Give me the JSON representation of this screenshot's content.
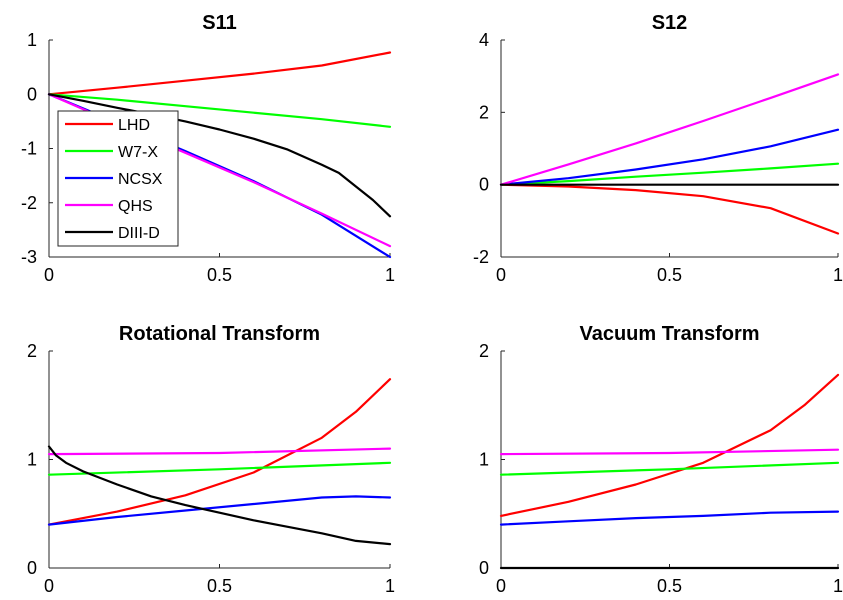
{
  "chart_data": [
    {
      "type": "line",
      "title": "S11",
      "xlabel": "",
      "ylabel": "",
      "xlim": [
        0,
        1
      ],
      "ylim": [
        -3,
        1
      ],
      "xticks": [
        "0",
        "0.5",
        "1"
      ],
      "yticks": [
        "1",
        "0",
        "-1",
        "-2",
        "-3"
      ],
      "grid": false,
      "legend": {
        "placement": "lower-left",
        "entries": [
          "LHD",
          "W7-X",
          "NCSX",
          "QHS",
          "DIII-D"
        ]
      },
      "series": [
        {
          "name": "LHD",
          "color": "#ff0000",
          "x": [
            0,
            0.2,
            0.4,
            0.6,
            0.8,
            1.0
          ],
          "y": [
            0,
            0.12,
            0.25,
            0.38,
            0.53,
            0.77
          ]
        },
        {
          "name": "W7-X",
          "color": "#00ff00",
          "x": [
            0,
            0.2,
            0.4,
            0.6,
            0.8,
            1.0
          ],
          "y": [
            0,
            -0.1,
            -0.22,
            -0.34,
            -0.46,
            -0.6
          ]
        },
        {
          "name": "NCSX",
          "color": "#0000ff",
          "x": [
            0,
            0.2,
            0.4,
            0.6,
            0.8,
            1.0
          ],
          "y": [
            0,
            -0.52,
            -1.05,
            -1.6,
            -2.22,
            -3.0
          ]
        },
        {
          "name": "QHS",
          "color": "#ff00ff",
          "x": [
            0,
            0.2,
            0.4,
            0.6,
            0.8,
            1.0
          ],
          "y": [
            0,
            -0.55,
            -1.08,
            -1.62,
            -2.2,
            -2.8
          ]
        },
        {
          "name": "DIII-D",
          "color": "#000000",
          "x": [
            0,
            0.1,
            0.2,
            0.3,
            0.4,
            0.5,
            0.6,
            0.7,
            0.8,
            0.85,
            0.9,
            0.95,
            1.0
          ],
          "y": [
            0,
            -0.12,
            -0.25,
            -0.37,
            -0.5,
            -0.65,
            -0.82,
            -1.02,
            -1.3,
            -1.45,
            -1.7,
            -1.95,
            -2.25
          ]
        }
      ]
    },
    {
      "type": "line",
      "title": "S12",
      "xlabel": "",
      "ylabel": "",
      "xlim": [
        0,
        1
      ],
      "ylim": [
        -2,
        4
      ],
      "xticks": [
        "0",
        "0.5",
        "1"
      ],
      "yticks": [
        "4",
        "2",
        "0",
        "-2"
      ],
      "grid": false,
      "series": [
        {
          "name": "LHD",
          "color": "#ff0000",
          "x": [
            0,
            0.2,
            0.4,
            0.6,
            0.8,
            1.0
          ],
          "y": [
            0,
            -0.05,
            -0.15,
            -0.32,
            -0.65,
            -1.35
          ]
        },
        {
          "name": "W7-X",
          "color": "#00ff00",
          "x": [
            0,
            0.2,
            0.4,
            0.6,
            0.8,
            1.0
          ],
          "y": [
            0,
            0.1,
            0.22,
            0.33,
            0.45,
            0.58
          ]
        },
        {
          "name": "NCSX",
          "color": "#0000ff",
          "x": [
            0,
            0.2,
            0.4,
            0.6,
            0.8,
            1.0
          ],
          "y": [
            0,
            0.18,
            0.42,
            0.7,
            1.06,
            1.52
          ]
        },
        {
          "name": "QHS",
          "color": "#ff00ff",
          "x": [
            0,
            0.2,
            0.4,
            0.6,
            0.8,
            1.0
          ],
          "y": [
            0,
            0.56,
            1.14,
            1.76,
            2.4,
            3.05
          ]
        },
        {
          "name": "DIII-D",
          "color": "#000000",
          "x": [
            0,
            1.0
          ],
          "y": [
            0,
            0
          ]
        }
      ]
    },
    {
      "type": "line",
      "title": "Rotational Transform",
      "xlabel": "",
      "ylabel": "",
      "xlim": [
        0,
        1
      ],
      "ylim": [
        0,
        2
      ],
      "xticks": [
        "0",
        "0.5",
        "1"
      ],
      "yticks": [
        "2",
        "1",
        "0"
      ],
      "grid": false,
      "series": [
        {
          "name": "LHD",
          "color": "#ff0000",
          "x": [
            0,
            0.2,
            0.4,
            0.6,
            0.8,
            0.9,
            1.0
          ],
          "y": [
            0.4,
            0.52,
            0.67,
            0.88,
            1.2,
            1.44,
            1.74
          ]
        },
        {
          "name": "W7-X",
          "color": "#00ff00",
          "x": [
            0,
            0.5,
            1.0
          ],
          "y": [
            0.86,
            0.91,
            0.97
          ]
        },
        {
          "name": "NCSX",
          "color": "#0000ff",
          "x": [
            0,
            0.2,
            0.4,
            0.6,
            0.8,
            0.9,
            1.0
          ],
          "y": [
            0.4,
            0.47,
            0.53,
            0.59,
            0.65,
            0.66,
            0.65
          ]
        },
        {
          "name": "QHS",
          "color": "#ff00ff",
          "x": [
            0,
            0.5,
            1.0
          ],
          "y": [
            1.05,
            1.06,
            1.1
          ]
        },
        {
          "name": "DIII-D",
          "color": "#000000",
          "x": [
            0,
            0.02,
            0.05,
            0.1,
            0.2,
            0.3,
            0.4,
            0.5,
            0.6,
            0.7,
            0.8,
            0.9,
            1.0
          ],
          "y": [
            1.12,
            1.04,
            0.97,
            0.89,
            0.77,
            0.66,
            0.58,
            0.51,
            0.44,
            0.38,
            0.32,
            0.25,
            0.22
          ]
        }
      ]
    },
    {
      "type": "line",
      "title": "Vacuum Transform",
      "xlabel": "",
      "ylabel": "",
      "xlim": [
        0,
        1
      ],
      "ylim": [
        0,
        2
      ],
      "xticks": [
        "0",
        "0.5",
        "1"
      ],
      "yticks": [
        "2",
        "1",
        "0"
      ],
      "grid": false,
      "series": [
        {
          "name": "LHD",
          "color": "#ff0000",
          "x": [
            0,
            0.2,
            0.4,
            0.6,
            0.8,
            0.9,
            1.0
          ],
          "y": [
            0.48,
            0.61,
            0.77,
            0.97,
            1.27,
            1.5,
            1.78
          ]
        },
        {
          "name": "W7-X",
          "color": "#00ff00",
          "x": [
            0,
            0.5,
            1.0
          ],
          "y": [
            0.86,
            0.91,
            0.97
          ]
        },
        {
          "name": "NCSX",
          "color": "#0000ff",
          "x": [
            0,
            0.2,
            0.4,
            0.6,
            0.8,
            1.0
          ],
          "y": [
            0.4,
            0.43,
            0.46,
            0.48,
            0.51,
            0.52
          ]
        },
        {
          "name": "QHS",
          "color": "#ff00ff",
          "x": [
            0,
            0.5,
            1.0
          ],
          "y": [
            1.05,
            1.06,
            1.09
          ]
        },
        {
          "name": "DIII-D",
          "color": "#000000",
          "x": [
            0,
            1.0
          ],
          "y": [
            0,
            0
          ]
        }
      ]
    }
  ]
}
